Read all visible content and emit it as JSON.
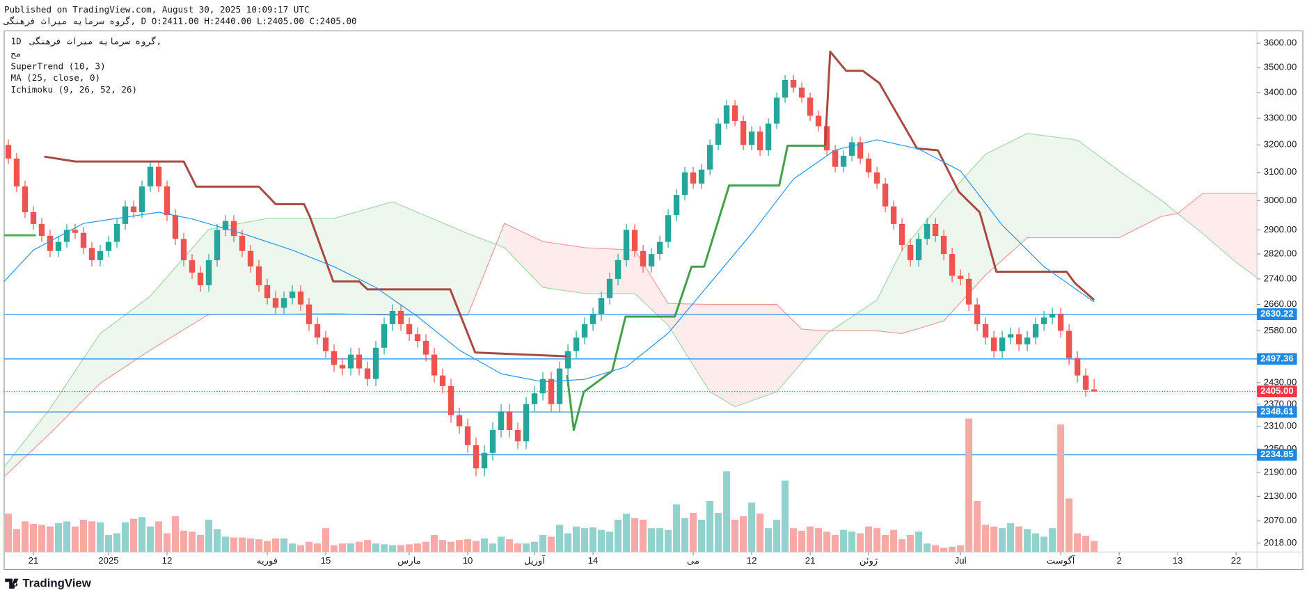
{
  "header": {
    "published": "Published on TradingView.com, August 30, 2025 10:09:17 UTC",
    "symbol_line": "گروه سرمایه میراث فرهنگی, D O:2411.00 H:2440.00 L:2405.00 C:2405.00"
  },
  "legend": {
    "interval": "1D",
    "symbol": "گروه سرمایه میراث فرهنگی,",
    "market": "مح"
  },
  "footer": {
    "brand": "TradingView"
  },
  "chart_data": {
    "type": "candlestick",
    "xlim": [
      -0.5,
      149.5
    ],
    "xticks": [
      {
        "value": 3,
        "label": "21"
      },
      {
        "value": 12,
        "label": "2025"
      },
      {
        "value": 19,
        "label": "12"
      },
      {
        "value": 31,
        "label": "فوریه"
      },
      {
        "value": 38,
        "label": "15"
      },
      {
        "value": 48,
        "label": "مارس"
      },
      {
        "value": 55,
        "label": "10"
      },
      {
        "value": 63,
        "label": "آوریل"
      },
      {
        "value": 70,
        "label": "14"
      },
      {
        "value": 82,
        "label": "می"
      },
      {
        "value": 89,
        "label": "12"
      },
      {
        "value": 96,
        "label": "21"
      },
      {
        "value": 103,
        "label": "ژوئن"
      },
      {
        "value": 114,
        "label": "Jul"
      },
      {
        "value": 126,
        "label": "آگوست"
      },
      {
        "value": 133,
        "label": "2"
      },
      {
        "value": 140,
        "label": "13"
      },
      {
        "value": 147,
        "label": "22"
      }
    ],
    "ylim": [
      1997,
      3652
    ],
    "log_scale": true,
    "grid": false,
    "yticks": [
      {
        "value": 3600,
        "label": "3600.00"
      },
      {
        "value": 3500,
        "label": "3500.00"
      },
      {
        "value": 3400,
        "label": "3400.00"
      },
      {
        "value": 3300,
        "label": "3300.00"
      },
      {
        "value": 3200,
        "label": "3200.00"
      },
      {
        "value": 3100,
        "label": "3100.00"
      },
      {
        "value": 3000,
        "label": "3000.00"
      },
      {
        "value": 2900,
        "label": "2900.00"
      },
      {
        "value": 2820,
        "label": "2820.00"
      },
      {
        "value": 2740,
        "label": "2740.00"
      },
      {
        "value": 2660,
        "label": "2660.00"
      },
      {
        "value": 2580,
        "label": "2580.00"
      },
      {
        "value": 2430,
        "label": "2430.00"
      },
      {
        "value": 2370,
        "label": "2370.00"
      },
      {
        "value": 2310,
        "label": "2310.00"
      },
      {
        "value": 2250,
        "label": "2250.00"
      },
      {
        "value": 2190,
        "label": "2190.00"
      },
      {
        "value": 2130,
        "label": "2130.00"
      },
      {
        "value": 2070,
        "label": "2070.00"
      },
      {
        "value": 2018,
        "label": "2018.00"
      }
    ],
    "up_color": "#26a69a",
    "down_color": "#ef5350",
    "volume_up_color": "#92d2cc",
    "volume_down_color": "#f7a9a7",
    "candles": [
      [
        3200,
        3220,
        3130,
        3150
      ],
      [
        3150,
        3170,
        3030,
        3050
      ],
      [
        3050,
        3070,
        2940,
        2960
      ],
      [
        2960,
        2980,
        2900,
        2920
      ],
      [
        2920,
        2940,
        2860,
        2880
      ],
      [
        2880,
        2900,
        2810,
        2830
      ],
      [
        2830,
        2880,
        2810,
        2860
      ],
      [
        2860,
        2920,
        2840,
        2900
      ],
      [
        2900,
        2920,
        2870,
        2890
      ],
      [
        2890,
        2910,
        2820,
        2840
      ],
      [
        2840,
        2860,
        2780,
        2800
      ],
      [
        2800,
        2850,
        2780,
        2830
      ],
      [
        2830,
        2880,
        2810,
        2860
      ],
      [
        2860,
        2940,
        2840,
        2920
      ],
      [
        2920,
        3000,
        2900,
        2980
      ],
      [
        2980,
        3000,
        2940,
        2960
      ],
      [
        2960,
        3070,
        2940,
        3050
      ],
      [
        3050,
        3140,
        3030,
        3120
      ],
      [
        3120,
        3140,
        3030,
        3050
      ],
      [
        3050,
        3070,
        2930,
        2950
      ],
      [
        2950,
        2970,
        2850,
        2870
      ],
      [
        2870,
        2890,
        2780,
        2800
      ],
      [
        2800,
        2820,
        2740,
        2760
      ],
      [
        2760,
        2780,
        2700,
        2720
      ],
      [
        2720,
        2820,
        2700,
        2800
      ],
      [
        2800,
        2920,
        2780,
        2900
      ],
      [
        2900,
        2950,
        2880,
        2930
      ],
      [
        2930,
        2950,
        2860,
        2880
      ],
      [
        2880,
        2900,
        2810,
        2830
      ],
      [
        2830,
        2850,
        2760,
        2780
      ],
      [
        2780,
        2800,
        2700,
        2720
      ],
      [
        2720,
        2740,
        2660,
        2680
      ],
      [
        2680,
        2700,
        2630,
        2650
      ],
      [
        2650,
        2700,
        2630,
        2680
      ],
      [
        2680,
        2720,
        2660,
        2700
      ],
      [
        2700,
        2720,
        2640,
        2660
      ],
      [
        2660,
        2680,
        2580,
        2600
      ],
      [
        2600,
        2620,
        2540,
        2560
      ],
      [
        2560,
        2580,
        2500,
        2520
      ],
      [
        2520,
        2540,
        2460,
        2480
      ],
      [
        2480,
        2500,
        2450,
        2470
      ],
      [
        2470,
        2530,
        2450,
        2510
      ],
      [
        2510,
        2530,
        2450,
        2470
      ],
      [
        2470,
        2490,
        2420,
        2440
      ],
      [
        2440,
        2550,
        2420,
        2530
      ],
      [
        2530,
        2620,
        2510,
        2600
      ],
      [
        2600,
        2660,
        2580,
        2640
      ],
      [
        2640,
        2660,
        2580,
        2600
      ],
      [
        2600,
        2620,
        2550,
        2570
      ],
      [
        2570,
        2590,
        2530,
        2550
      ],
      [
        2550,
        2570,
        2490,
        2510
      ],
      [
        2510,
        2530,
        2430,
        2450
      ],
      [
        2450,
        2470,
        2400,
        2420
      ],
      [
        2420,
        2440,
        2320,
        2340
      ],
      [
        2340,
        2360,
        2290,
        2310
      ],
      [
        2310,
        2330,
        2240,
        2260
      ],
      [
        2260,
        2280,
        2180,
        2200
      ],
      [
        2200,
        2260,
        2180,
        2240
      ],
      [
        2240,
        2320,
        2220,
        2300
      ],
      [
        2300,
        2370,
        2280,
        2350
      ],
      [
        2350,
        2370,
        2280,
        2300
      ],
      [
        2300,
        2320,
        2250,
        2270
      ],
      [
        2270,
        2390,
        2250,
        2370
      ],
      [
        2370,
        2420,
        2350,
        2400
      ],
      [
        2400,
        2460,
        2380,
        2440
      ],
      [
        2440,
        2460,
        2350,
        2370
      ],
      [
        2370,
        2490,
        2350,
        2470
      ],
      [
        2470,
        2540,
        2450,
        2520
      ],
      [
        2520,
        2580,
        2500,
        2560
      ],
      [
        2560,
        2620,
        2540,
        2600
      ],
      [
        2600,
        2650,
        2580,
        2630
      ],
      [
        2630,
        2700,
        2610,
        2680
      ],
      [
        2680,
        2760,
        2660,
        2740
      ],
      [
        2740,
        2820,
        2720,
        2800
      ],
      [
        2800,
        2920,
        2780,
        2900
      ],
      [
        2900,
        2920,
        2810,
        2830
      ],
      [
        2830,
        2850,
        2760,
        2780
      ],
      [
        2780,
        2840,
        2760,
        2820
      ],
      [
        2820,
        2880,
        2800,
        2860
      ],
      [
        2860,
        2970,
        2840,
        2950
      ],
      [
        2950,
        3040,
        2930,
        3020
      ],
      [
        3020,
        3120,
        3000,
        3100
      ],
      [
        3100,
        3120,
        3040,
        3060
      ],
      [
        3060,
        3130,
        3040,
        3110
      ],
      [
        3110,
        3220,
        3090,
        3200
      ],
      [
        3200,
        3300,
        3180,
        3280
      ],
      [
        3280,
        3370,
        3260,
        3350
      ],
      [
        3350,
        3370,
        3270,
        3290
      ],
      [
        3290,
        3310,
        3180,
        3200
      ],
      [
        3200,
        3270,
        3180,
        3250
      ],
      [
        3250,
        3270,
        3160,
        3180
      ],
      [
        3180,
        3300,
        3160,
        3280
      ],
      [
        3280,
        3400,
        3260,
        3380
      ],
      [
        3380,
        3470,
        3360,
        3450
      ],
      [
        3450,
        3470,
        3400,
        3420
      ],
      [
        3420,
        3440,
        3360,
        3380
      ],
      [
        3380,
        3400,
        3290,
        3310
      ],
      [
        3310,
        3330,
        3250,
        3270
      ],
      [
        3270,
        3290,
        3160,
        3180
      ],
      [
        3180,
        3200,
        3100,
        3120
      ],
      [
        3120,
        3180,
        3100,
        3160
      ],
      [
        3160,
        3230,
        3140,
        3210
      ],
      [
        3210,
        3230,
        3130,
        3150
      ],
      [
        3150,
        3170,
        3080,
        3100
      ],
      [
        3100,
        3120,
        3040,
        3060
      ],
      [
        3060,
        3080,
        2960,
        2980
      ],
      [
        2980,
        3000,
        2900,
        2920
      ],
      [
        2920,
        2940,
        2830,
        2850
      ],
      [
        2850,
        2870,
        2780,
        2800
      ],
      [
        2800,
        2890,
        2780,
        2870
      ],
      [
        2870,
        2940,
        2850,
        2920
      ],
      [
        2920,
        2940,
        2860,
        2880
      ],
      [
        2880,
        2900,
        2800,
        2820
      ],
      [
        2820,
        2840,
        2730,
        2750
      ],
      [
        2750,
        2770,
        2720,
        2740
      ],
      [
        2740,
        2760,
        2640,
        2660
      ],
      [
        2660,
        2680,
        2580,
        2600
      ],
      [
        2600,
        2620,
        2540,
        2560
      ],
      [
        2560,
        2580,
        2500,
        2520
      ],
      [
        2520,
        2580,
        2500,
        2560
      ],
      [
        2560,
        2590,
        2540,
        2570
      ],
      [
        2570,
        2590,
        2520,
        2540
      ],
      [
        2540,
        2580,
        2520,
        2560
      ],
      [
        2560,
        2620,
        2540,
        2600
      ],
      [
        2600,
        2640,
        2580,
        2620
      ],
      [
        2620,
        2650,
        2600,
        2630
      ],
      [
        2630,
        2650,
        2560,
        2580
      ],
      [
        2580,
        2600,
        2480,
        2500
      ],
      [
        2500,
        2520,
        2430,
        2450
      ],
      [
        2450,
        2470,
        2390,
        2410
      ],
      [
        2411,
        2440,
        2405,
        2405
      ]
    ],
    "volume": [
      45,
      27,
      36,
      33,
      32,
      30,
      34,
      36,
      30,
      38,
      36,
      35,
      20,
      22,
      35,
      39,
      41,
      30,
      36,
      22,
      42,
      25,
      24,
      20,
      38,
      27,
      18,
      17,
      17,
      16,
      15,
      13,
      16,
      16,
      10,
      8,
      12,
      10,
      28,
      8,
      10,
      10,
      12,
      14,
      10,
      9,
      8,
      8,
      9,
      10,
      12,
      20,
      14,
      12,
      14,
      15,
      13,
      16,
      10,
      18,
      15,
      10,
      10,
      12,
      20,
      18,
      32,
      22,
      30,
      28,
      29,
      26,
      24,
      38,
      45,
      40,
      38,
      28,
      28,
      26,
      56,
      40,
      46,
      38,
      60,
      46,
      95,
      38,
      42,
      58,
      45,
      28,
      38,
      84,
      28,
      25,
      30,
      28,
      24,
      20,
      26,
      24,
      22,
      30,
      28,
      20,
      26,
      15,
      20,
      24,
      10,
      8,
      5,
      6,
      8,
      157,
      60,
      32,
      30,
      28,
      34,
      30,
      27,
      22,
      18,
      28,
      150,
      63,
      22,
      19,
      13
    ],
    "indicators": [
      {
        "label": "SuperTrend (10, 3)",
        "lines": [
          {
            "color": "#4caf50",
            "x": [
              -0.5,
              3.3
            ],
            "values": [
              2882,
              2882
            ]
          },
          {
            "color": "#a84a43",
            "x": [
              4.3,
              8,
              21,
              22.5,
              30,
              32,
              35.4,
              36.1,
              38.9,
              42,
              43,
              52.9,
              55.9,
              66.9
            ],
            "values": [
              3157,
              3139,
              3139,
              3049,
              3049,
              2988,
              2988,
              2945,
              2732,
              2732,
              2707,
              2707,
              2516,
              2505
            ]
          },
          {
            "color": "#43a047",
            "x": [
              66.9,
              67.7,
              68.9,
              72.3,
              73.9,
              79.8,
              81.8,
              83.3,
              86.3,
              92.3,
              93.3,
              97.8
            ],
            "values": [
              2451,
              2300,
              2404,
              2463,
              2623,
              2623,
              2779,
              2779,
              3053,
              3053,
              3197,
              3197
            ]
          },
          {
            "color": "#a84a43",
            "x": [
              97.8,
              98.4,
              100.3,
              102.3,
              104.3,
              108.8,
              111.3,
              113.8,
              116.3,
              118.3,
              126.7,
              127.7,
              130
            ],
            "values": [
              3197,
              3565,
              3487,
              3487,
              3437,
              3187,
              3180,
              3031,
              2960,
              2763,
              2763,
              2727,
              2674
            ]
          }
        ]
      },
      {
        "label": "MA (25, close, 0)",
        "lines": [
          {
            "color": "#2196f3",
            "x": [
              -0.5,
              3,
              9,
              18,
              22,
              28,
              34,
              39,
              44,
              49,
              54,
              59,
              64,
              69,
              74,
              79,
              84,
              89,
              94,
              99,
              104,
              109,
              114,
              119,
              124,
              130
            ],
            "values": [
              2732,
              2833,
              2922,
              2960,
              2937,
              2888,
              2833,
              2779,
              2713,
              2623,
              2523,
              2455,
              2432,
              2439,
              2475,
              2573,
              2726,
              2888,
              3076,
              3181,
              3219,
              3185,
              3105,
              2916,
              2779,
              2668
            ]
          }
        ]
      },
      {
        "label": "Ichimoku (9, 26, 52, 26)",
        "up_fill": "rgba(76,175,80,0.10)",
        "down_fill": "rgba(242,54,69,0.10)",
        "x": [
          -0.5,
          5,
          11,
          17,
          24,
          31,
          39,
          46,
          55,
          59.4,
          64,
          69,
          75,
          79,
          84,
          87,
          92,
          95,
          98,
          104,
          107,
          112,
          117,
          122,
          128,
          133,
          138,
          140,
          143,
          147,
          149.5
        ],
        "span_a": {
          "color": "#a5d6a7",
          "values": [
            2204,
            2358,
            2572,
            2686,
            2902,
            2939,
            2939,
            2996,
            2888,
            2841,
            2713,
            2694,
            2694,
            2597,
            2404,
            2363,
            2404,
            2487,
            2572,
            2674,
            2833,
            3002,
            3166,
            3243,
            3218,
            3105,
            3002,
            2956,
            2888,
            2793,
            2744
          ]
        },
        "span_b": {
          "color": "#ef9a9a",
          "values": [
            2179,
            2291,
            2428,
            2523,
            2630,
            2630,
            2632,
            2627,
            2627,
            2922,
            2861,
            2841,
            2833,
            2663,
            2660,
            2660,
            2660,
            2585,
            2580,
            2580,
            2572,
            2610,
            2752,
            2874,
            2874,
            2874,
            2945,
            2956,
            3025,
            3025,
            3025
          ]
        }
      }
    ],
    "hline_color": "#1e88e5",
    "hlines": [
      {
        "value": 2630.22,
        "label": "2630.22"
      },
      {
        "value": 2497.36,
        "label": "2497.36"
      },
      {
        "value": 2348.61,
        "label": "2348.61"
      },
      {
        "value": 2234.85,
        "label": "2234.85"
      }
    ],
    "last_price_color": "#f23645",
    "last_price": {
      "value": 2405,
      "label": "2405.00"
    }
  }
}
